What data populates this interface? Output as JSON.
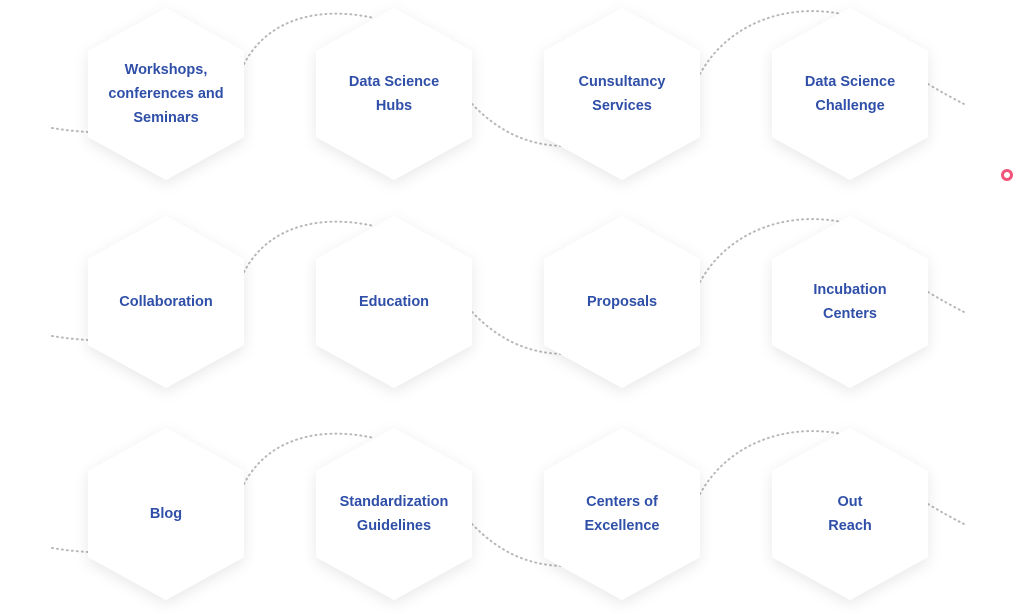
{
  "colors": {
    "label": "#2f4fa8",
    "hex_fill": "#ffffff",
    "connector": "#b8b8b8",
    "indicator": "#f2557a"
  },
  "services": [
    {
      "id": "workshops",
      "label": "Workshops,\nconferences and\nSeminars"
    },
    {
      "id": "data-science-hubs",
      "label": "Data Science\nHubs"
    },
    {
      "id": "consultancy",
      "label": "Cunsultancy\nServices"
    },
    {
      "id": "data-science-challenge",
      "label": "Data Science\nChallenge"
    },
    {
      "id": "collaboration",
      "label": "Collaboration"
    },
    {
      "id": "education",
      "label": "Education"
    },
    {
      "id": "proposals",
      "label": "Proposals"
    },
    {
      "id": "incubation-centers",
      "label": "Incubation\nCenters"
    },
    {
      "id": "blog",
      "label": "Blog"
    },
    {
      "id": "standardization-guidelines",
      "label": "Standardization\nGuidelines"
    },
    {
      "id": "centers-of-excellence",
      "label": "Centers of\nExcellence"
    },
    {
      "id": "out-reach",
      "label": "Out\nReach"
    }
  ],
  "indicator_icon": "circle-ring-icon"
}
